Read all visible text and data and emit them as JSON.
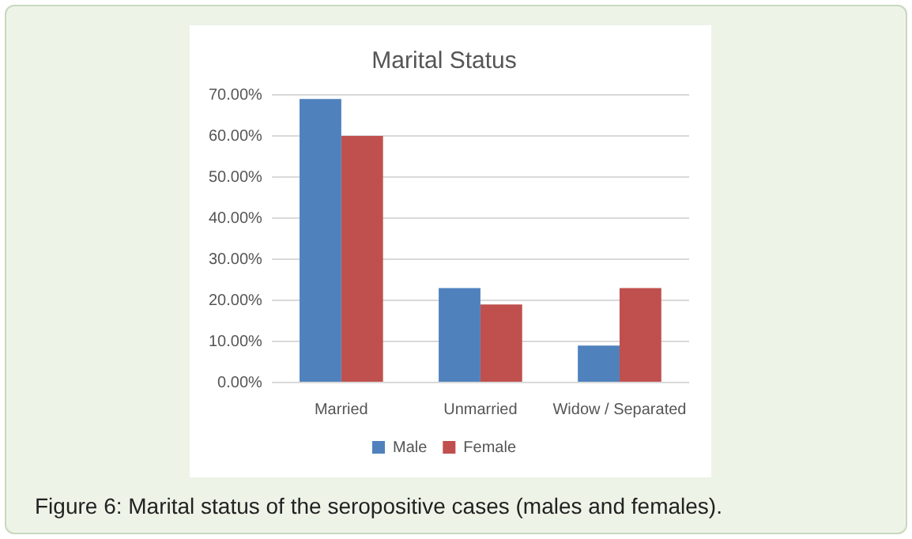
{
  "chart_data": {
    "type": "bar",
    "title": "Marital Status",
    "categories": [
      "Married",
      "Unmarried",
      "Widow / Separated"
    ],
    "series": [
      {
        "name": "Male",
        "color": "#4f81bd",
        "values": [
          69,
          23,
          9
        ]
      },
      {
        "name": "Female",
        "color": "#c0504d",
        "values": [
          60,
          19,
          23
        ]
      }
    ],
    "ylim": [
      0,
      70
    ],
    "yticks": [
      {
        "value": 0,
        "label": "0.00%"
      },
      {
        "value": 10,
        "label": "10.00%"
      },
      {
        "value": 20,
        "label": "20.00%"
      },
      {
        "value": 30,
        "label": "30.00%"
      },
      {
        "value": 40,
        "label": "40.00%"
      },
      {
        "value": 50,
        "label": "50.00%"
      },
      {
        "value": 60,
        "label": "60.00%"
      },
      {
        "value": 70,
        "label": "70.00%"
      }
    ],
    "grid": "y",
    "legend": "bottom",
    "annotations": [
      "Figure 6: Marital status of the seropositive cases (males and females)."
    ]
  }
}
